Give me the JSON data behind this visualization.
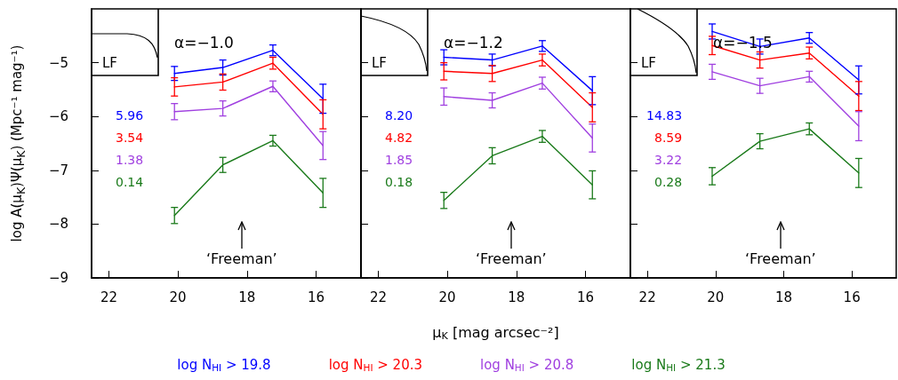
{
  "chart_data": [
    {
      "type": "line",
      "title": "α=−1.0",
      "ylabel": "log A(μ$_{K}$)Ψ(μ$_{K}$)  (Mpc⁻¹ mag⁻¹)",
      "x": [
        20.1,
        18.7,
        17.25,
        15.8
      ],
      "xlim": [
        22.5,
        14.7
      ],
      "xticks": [
        22,
        20,
        18,
        16
      ],
      "ylim": [
        -9,
        -4
      ],
      "yticks": [
        -9,
        -8,
        -7,
        -6,
        -5
      ],
      "marker": "none",
      "legend": "bottom",
      "annotations": [
        "LF",
        "5.96",
        "3.54",
        "1.38",
        "0.14",
        "‘Freeman’"
      ],
      "series": [
        {
          "name": "log N$_{HI}$ > 19.8",
          "color": "#0000ff",
          "values": [
            -5.2,
            -5.09,
            -4.77,
            -5.67
          ],
          "errors": [
            0.13,
            0.14,
            0.1,
            0.27
          ]
        },
        {
          "name": "log N$_{HI}$ > 20.3",
          "color": "#ff0000",
          "values": [
            -5.45,
            -5.36,
            -5.01,
            -5.96
          ],
          "errors": [
            0.17,
            0.15,
            0.11,
            0.27
          ]
        },
        {
          "name": "log N$_{HI}$ > 20.8",
          "color": "#a040e0",
          "values": [
            -5.91,
            -5.85,
            -5.44,
            -6.54
          ],
          "errors": [
            0.15,
            0.14,
            0.1,
            0.26
          ]
        },
        {
          "name": "log N$_{HI}$ > 21.3",
          "color": "#1a7a1a",
          "values": [
            -7.84,
            -6.9,
            -6.45,
            -7.42
          ],
          "errors": [
            0.15,
            0.14,
            0.1,
            0.27
          ]
        }
      ]
    },
    {
      "type": "line",
      "title": "α=−1.2",
      "xlabel": "μ$_{K}$ [mag arcsec⁻²]",
      "x": [
        20.1,
        18.7,
        17.25,
        15.8
      ],
      "xlim": [
        22.5,
        14.7
      ],
      "xticks": [
        22,
        20,
        18,
        16
      ],
      "ylim": [
        -9,
        -4
      ],
      "yticks": [
        -9,
        -8,
        -7,
        -6,
        -5
      ],
      "marker": "none",
      "tick_labels": "x",
      "annotations": [
        "LF",
        "8.20",
        "4.82",
        "1.85",
        "0.18",
        "‘Freeman’"
      ],
      "series": [
        {
          "color": "#0000ff",
          "values": [
            -4.9,
            -4.95,
            -4.69,
            -5.52
          ],
          "errors": [
            0.14,
            0.11,
            0.1,
            0.26
          ]
        },
        {
          "color": "#ff0000",
          "values": [
            -5.16,
            -5.2,
            -4.95,
            -5.83
          ],
          "errors": [
            0.16,
            0.15,
            0.11,
            0.27
          ]
        },
        {
          "color": "#a040e0",
          "values": [
            -5.63,
            -5.7,
            -5.38,
            -6.4
          ],
          "errors": [
            0.16,
            0.14,
            0.11,
            0.26
          ]
        },
        {
          "color": "#1a7a1a",
          "values": [
            -7.56,
            -6.73,
            -6.37,
            -7.27
          ],
          "errors": [
            0.15,
            0.15,
            0.11,
            0.26
          ]
        }
      ]
    },
    {
      "type": "line",
      "title": "α=−1.5",
      "x": [
        20.1,
        18.7,
        17.25,
        15.8
      ],
      "xlim": [
        22.5,
        14.7
      ],
      "xticks": [
        22,
        20,
        18,
        16
      ],
      "ylim": [
        -9,
        -4
      ],
      "yticks": [
        -9,
        -8,
        -7,
        -6,
        -5
      ],
      "marker": "none",
      "tick_labels": "x",
      "annotations": [
        "LF",
        "14.83",
        "8.59",
        "3.22",
        "0.28",
        "‘Freeman’"
      ],
      "series": [
        {
          "color": "#0000ff",
          "values": [
            -4.42,
            -4.7,
            -4.54,
            -5.32
          ],
          "errors": [
            0.14,
            0.14,
            0.1,
            0.26
          ]
        },
        {
          "color": "#ff0000",
          "values": [
            -4.68,
            -4.95,
            -4.82,
            -5.62
          ],
          "errors": [
            0.17,
            0.15,
            0.11,
            0.27
          ]
        },
        {
          "color": "#a040e0",
          "values": [
            -5.17,
            -5.43,
            -5.26,
            -6.18
          ],
          "errors": [
            0.14,
            0.14,
            0.1,
            0.27
          ]
        },
        {
          "color": "#1a7a1a",
          "values": [
            -7.11,
            -6.46,
            -6.23,
            -7.05
          ],
          "errors": [
            0.16,
            0.14,
            0.11,
            0.27
          ]
        }
      ]
    }
  ]
}
